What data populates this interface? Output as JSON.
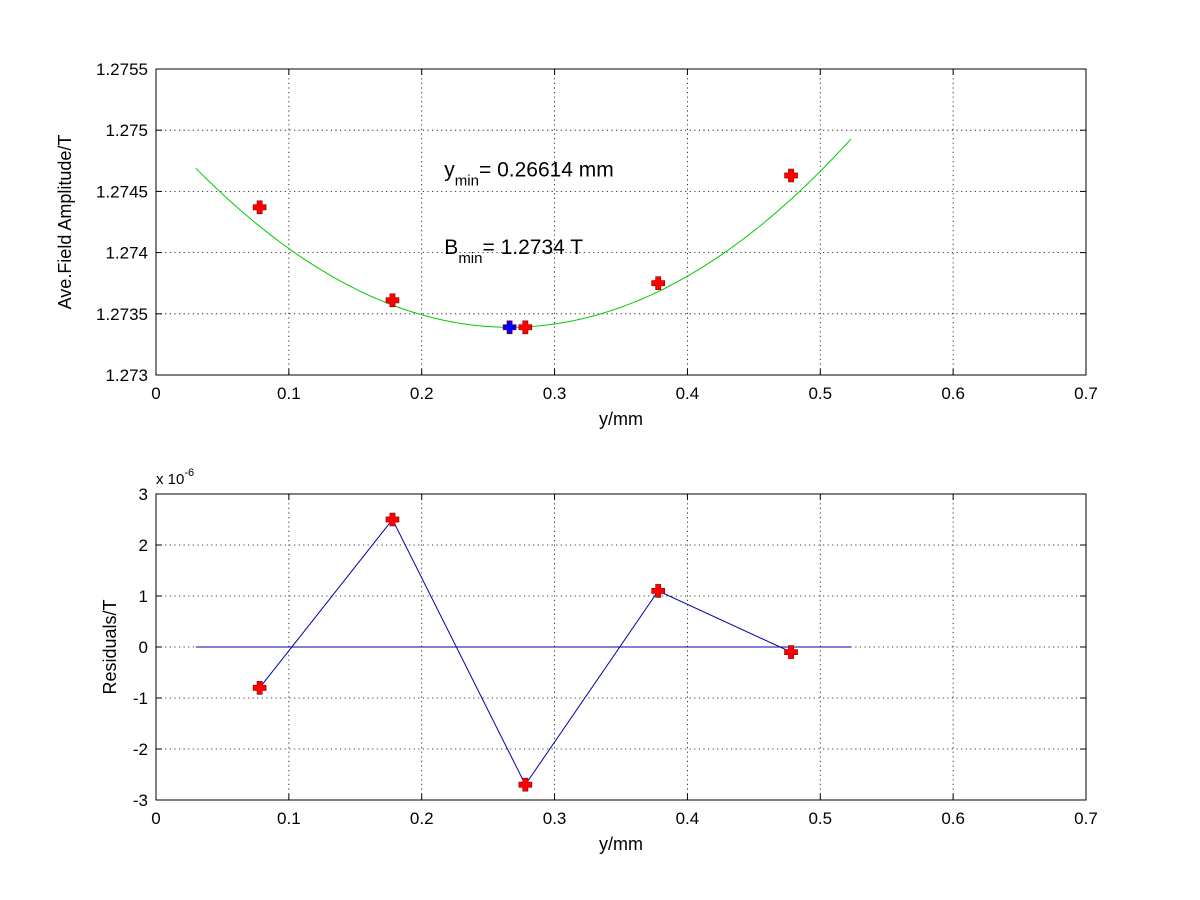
{
  "chart_data": [
    {
      "type": "scatter",
      "xlabel": "y/mm",
      "ylabel": "Ave.Field Amplitude/T",
      "xlim": [
        0,
        0.7
      ],
      "ylim": [
        1.273,
        1.2755
      ],
      "xticks": [
        "0",
        "0.1",
        "0.2",
        "0.3",
        "0.4",
        "0.5",
        "0.6",
        "0.7"
      ],
      "yticks": [
        "1.273",
        "1.2735",
        "1.274",
        "1.2745",
        "1.275",
        "1.2755"
      ],
      "grid": true,
      "series": [
        {
          "kind": "fit-curve",
          "color": "#00cc00",
          "x_range": [
            0.03,
            0.523
          ],
          "vertex": [
            0.26614,
            1.27339
          ],
          "curvature": 0.0233
        },
        {
          "kind": "markers",
          "color": "#ff0000",
          "marker": "plus-thick",
          "x": [
            0.078,
            0.178,
            0.278,
            0.378,
            0.478
          ],
          "y": [
            1.27437,
            1.27361,
            1.27339,
            1.27375,
            1.27463
          ]
        },
        {
          "kind": "markers",
          "color": "#0000ff",
          "marker": "plus-thick",
          "x": [
            0.26614
          ],
          "y": [
            1.27339
          ]
        }
      ],
      "annotations": [
        {
          "id": "ymin",
          "main": "y",
          "sub": "min",
          "rest": "= 0.26614 mm",
          "x": 0.217,
          "y": 1.27462
        },
        {
          "id": "bmin",
          "main": "B",
          "sub": "min",
          "rest": "= 1.2734 T",
          "x": 0.217,
          "y": 1.27399
        }
      ]
    },
    {
      "type": "line",
      "xlabel": "y/mm",
      "ylabel": "Residuals/T",
      "xlim": [
        0,
        0.7
      ],
      "ylim": [
        -3,
        3
      ],
      "xticks": [
        "0",
        "0.1",
        "0.2",
        "0.3",
        "0.4",
        "0.5",
        "0.6",
        "0.7"
      ],
      "yticks": [
        "-3",
        "-2",
        "-1",
        "0",
        "1",
        "2",
        "3"
      ],
      "exponent": {
        "base": "x 10",
        "power": "-6"
      },
      "grid": true,
      "series": [
        {
          "kind": "line-markers",
          "line_color": "#0000aa",
          "marker_color": "#ff0000",
          "marker": "plus-thick",
          "x": [
            0.078,
            0.178,
            0.278,
            0.378,
            0.478
          ],
          "y": [
            -0.8,
            2.5,
            -2.7,
            1.1,
            -0.1
          ]
        },
        {
          "kind": "zero-line",
          "color": "#0000aa",
          "x_range": [
            0.03,
            0.523
          ],
          "y": 0
        }
      ]
    }
  ]
}
